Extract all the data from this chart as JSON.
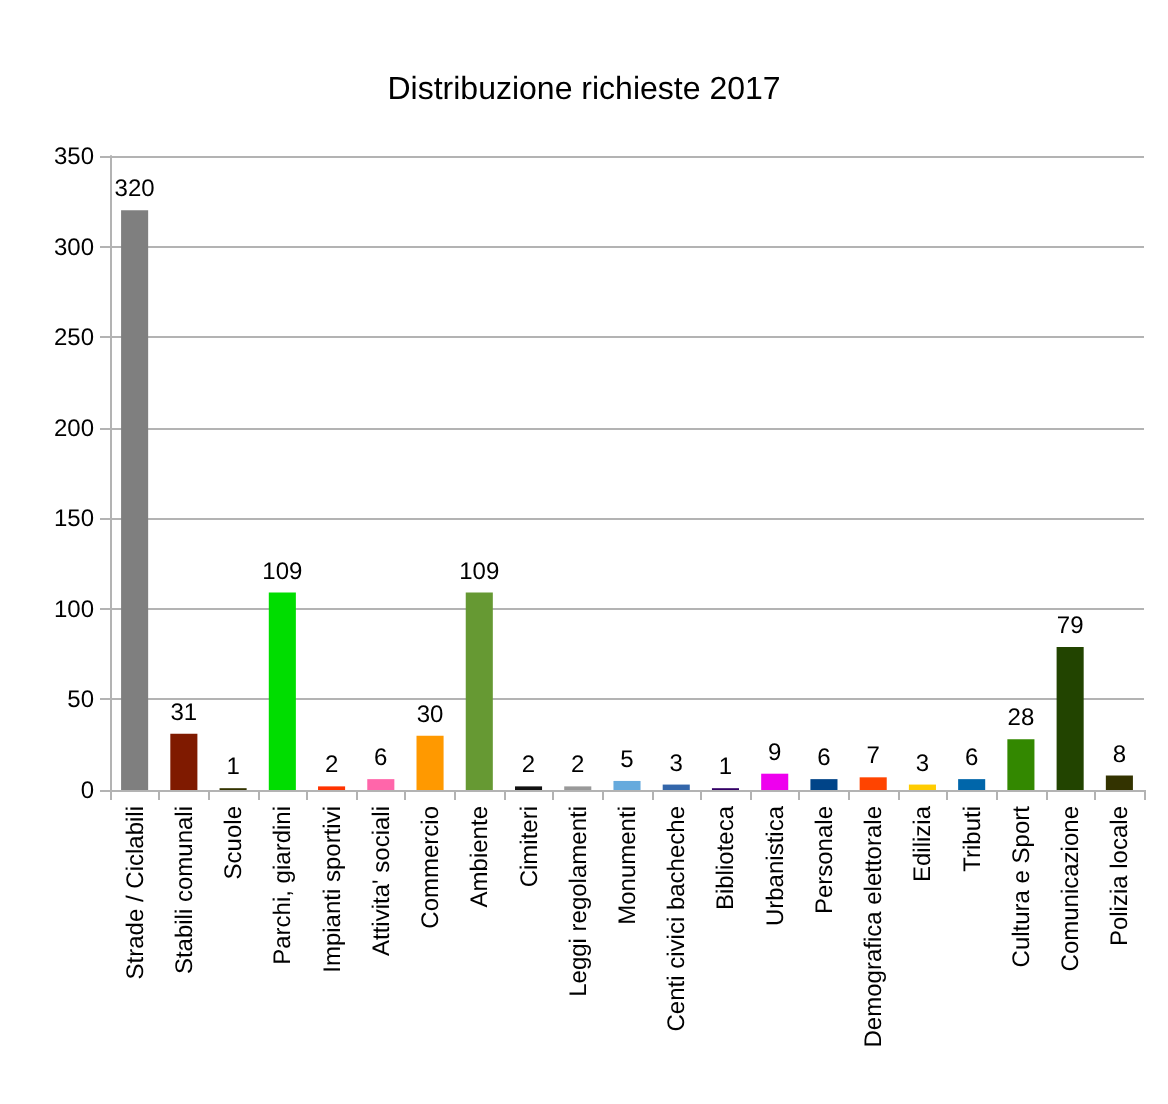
{
  "chart_data": {
    "type": "bar",
    "title": "Distribuzione richieste 2017",
    "categories": [
      "Strade / Ciclabili",
      "Stabili comunali",
      "Scuole",
      "Parchi, giardini",
      "Impianti sportivi",
      "Attivita' sociali",
      "Commercio",
      "Ambiente",
      "Cimiteri",
      "Leggi regolamenti",
      "Monumenti",
      "Centi civici bacheche",
      "Biblioteca",
      "Urbanistica",
      "Personale",
      "Demografica elettorale",
      "Edilizia",
      "Tributi",
      "Cultura e Sport",
      "Comunicazione",
      "Polizia locale"
    ],
    "values": [
      320,
      31,
      1,
      109,
      2,
      6,
      30,
      109,
      2,
      2,
      5,
      3,
      1,
      9,
      6,
      7,
      3,
      6,
      28,
      79,
      8
    ],
    "colors": [
      "#7f7f7f",
      "#7f1a00",
      "#333300",
      "#00dd00",
      "#ff3300",
      "#ff66aa",
      "#ff9900",
      "#669933",
      "#111111",
      "#999999",
      "#66aadd",
      "#3366aa",
      "#330066",
      "#ee00ee",
      "#004488",
      "#ff4400",
      "#ffcc00",
      "#0066aa",
      "#338800",
      "#224400",
      "#333300"
    ],
    "ylim": [
      0,
      350
    ],
    "yticks": [
      0,
      50,
      100,
      150,
      200,
      250,
      300,
      350
    ],
    "grid": "y",
    "data_labels": true
  }
}
